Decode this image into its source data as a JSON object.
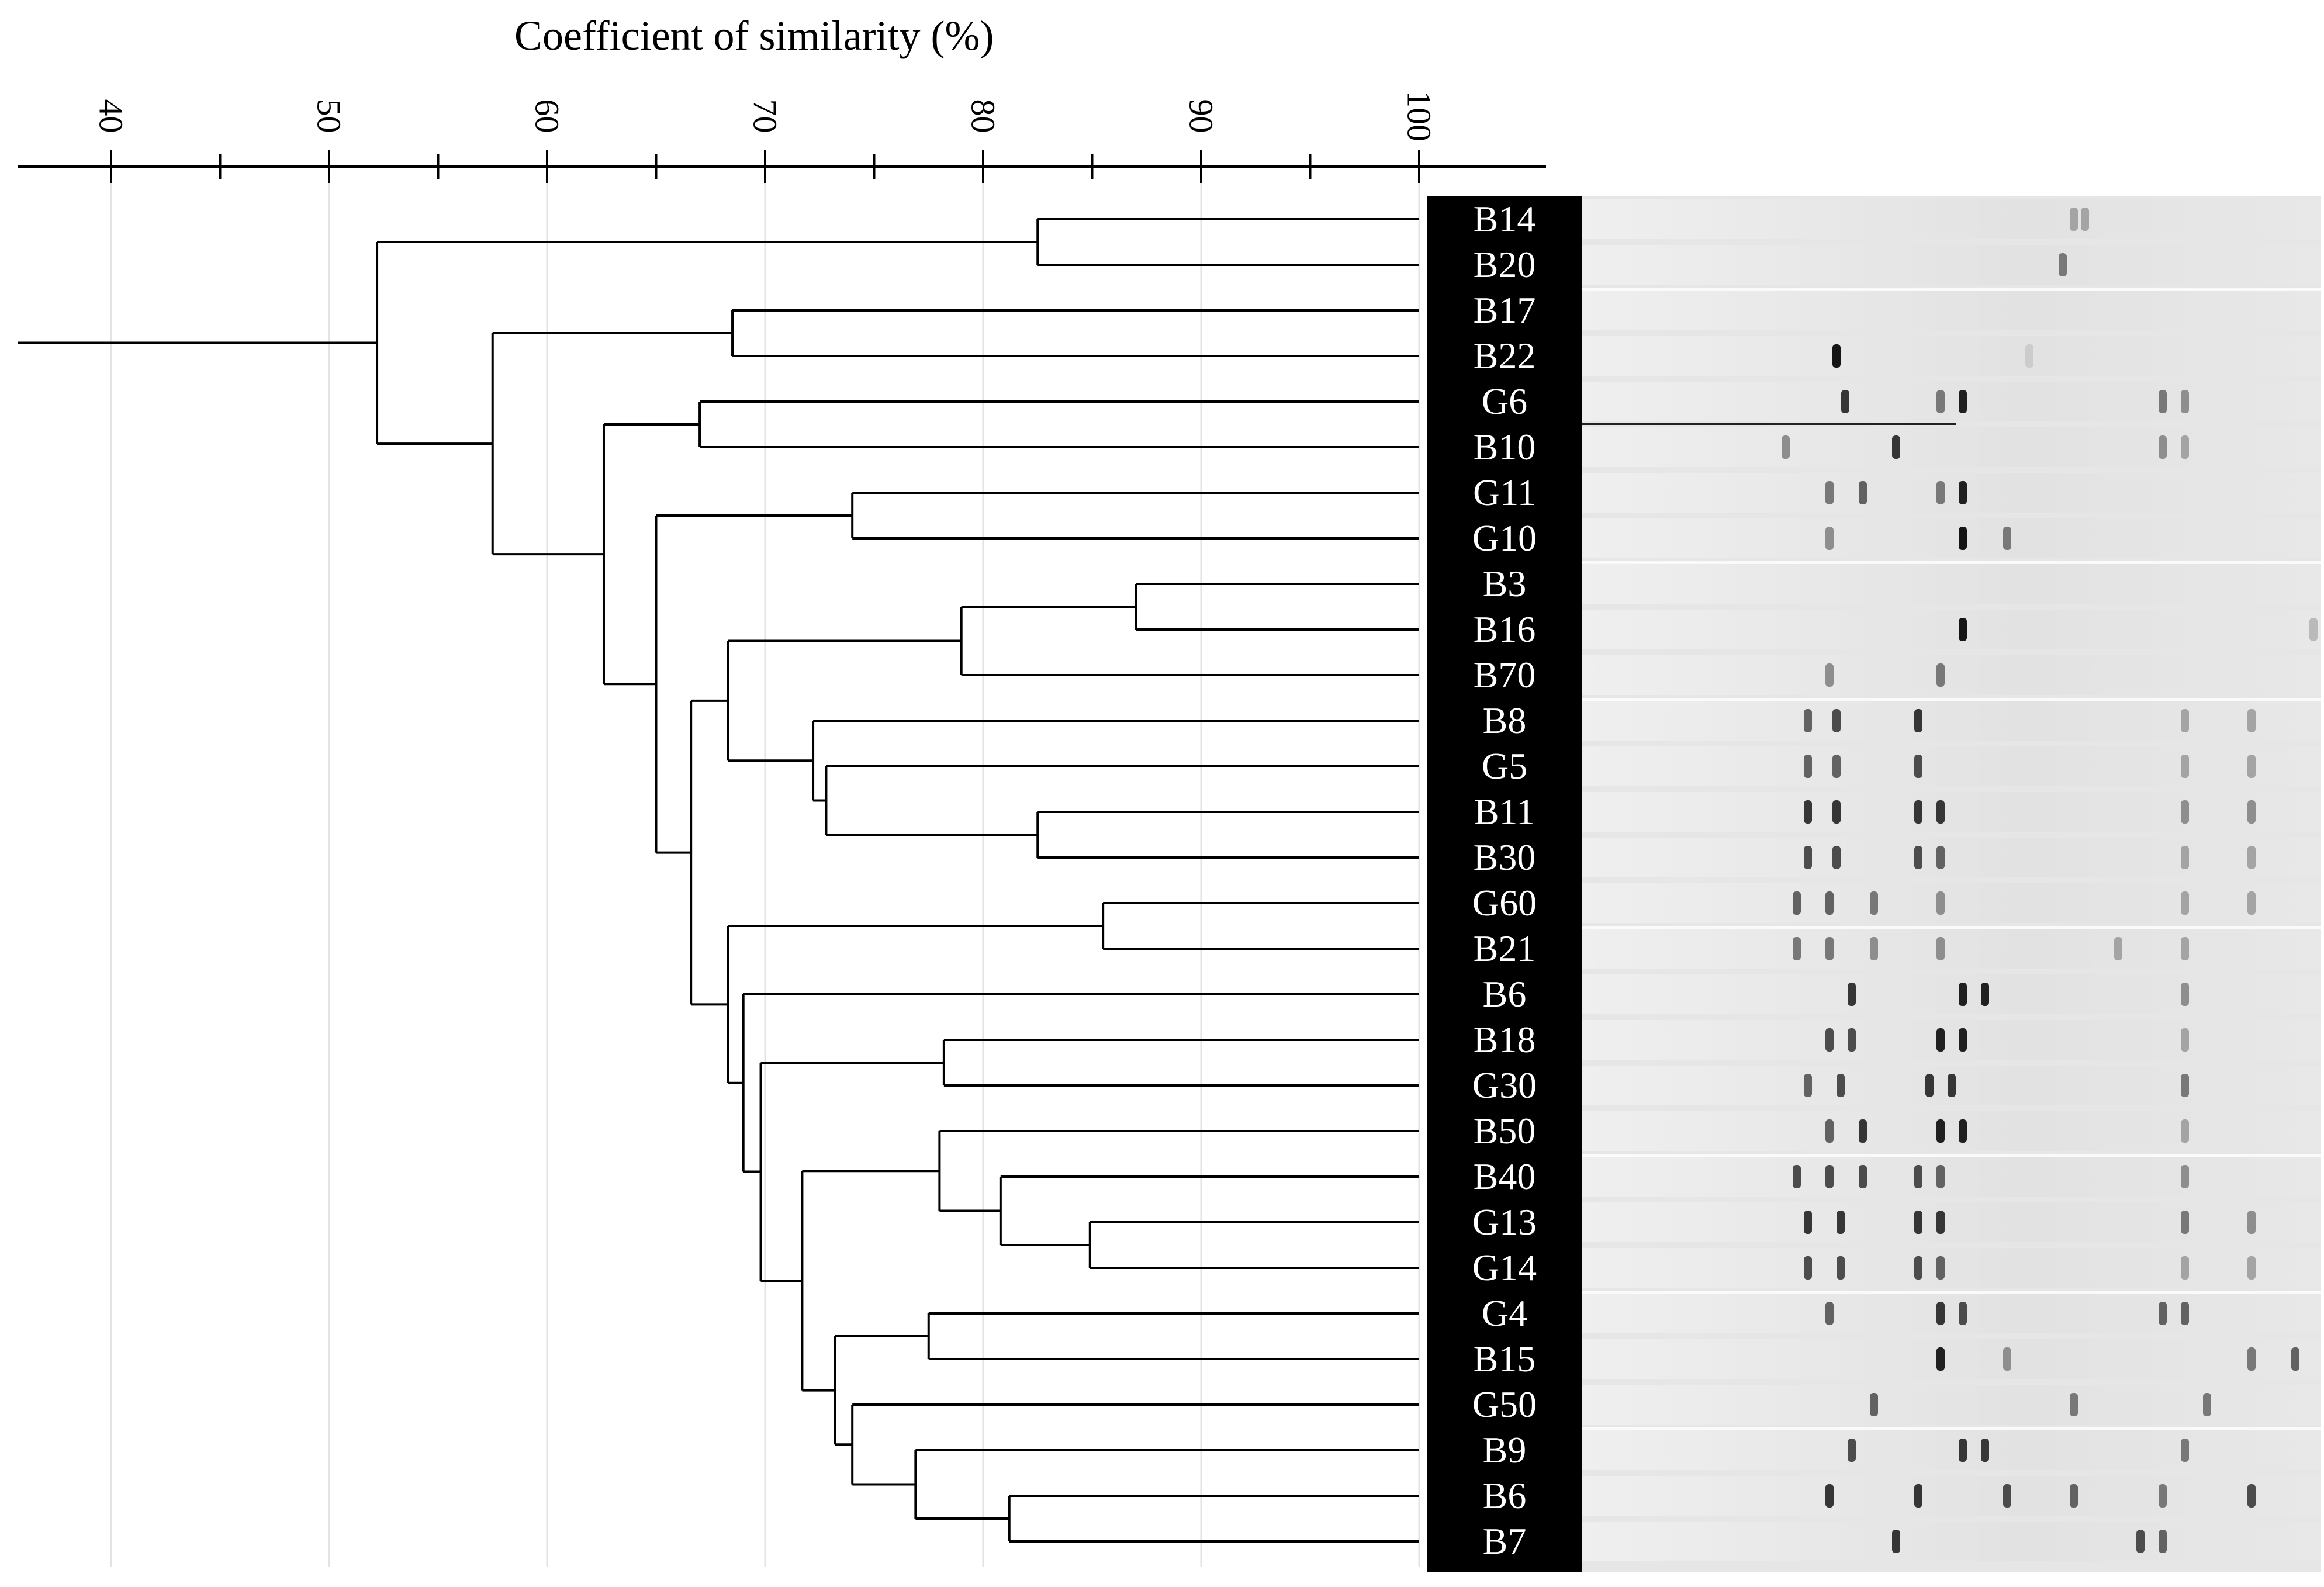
{
  "axis": {
    "title": "Coefficient  of similarity  (%)",
    "ticks": [
      "40",
      "50",
      "60",
      "70",
      "80",
      "90",
      "100"
    ],
    "tick_values": [
      40,
      50,
      60,
      70,
      80,
      90,
      100
    ],
    "minor_values": [
      45,
      55,
      65,
      75,
      85,
      95
    ]
  },
  "leaves": [
    "B14",
    "B20",
    "B17",
    "B22",
    "G6",
    "B10",
    "G11",
    "G10",
    "B3",
    "B16",
    "B70",
    "B8",
    "G5",
    "B11",
    "B30",
    "G60",
    "B21",
    "B6",
    "B18",
    "G30",
    "B50",
    "B40",
    "G13",
    "G14",
    "G4",
    "B15",
    "G50",
    "B9",
    "B6",
    "B7"
  ],
  "dendrogram": {
    "similarity_unit": "%",
    "merges": [
      {
        "join": [
          "B14",
          "B20"
        ],
        "similarity": 82.5
      },
      {
        "join": [
          "B17",
          "B22"
        ],
        "similarity": 68.5
      },
      {
        "join": [
          "G6",
          "B10"
        ],
        "similarity": 67.0
      },
      {
        "join": [
          "G11",
          "G10"
        ],
        "similarity": 74.0
      },
      {
        "join": [
          "B3",
          "B16"
        ],
        "similarity": 87.0
      },
      {
        "join": [
          "B3-B16",
          "B70"
        ],
        "similarity": 79.0
      },
      {
        "join": [
          "B11",
          "B30"
        ],
        "similarity": 82.5
      },
      {
        "join": [
          "G5",
          "B11-B30"
        ],
        "similarity": 72.8
      },
      {
        "join": [
          "B8",
          "G5-B11-B30"
        ],
        "similarity": 72.2
      },
      {
        "join": [
          "B3-B16-B70",
          "B8-G5-B11-B30"
        ],
        "similarity": 68.3
      },
      {
        "join": [
          "G60",
          "B21"
        ],
        "similarity": 85.5
      },
      {
        "join": [
          "B18",
          "G30"
        ],
        "similarity": 78.2
      },
      {
        "join": [
          "G13",
          "G14"
        ],
        "similarity": 84.9
      },
      {
        "join": [
          "B40",
          "G13-G14"
        ],
        "similarity": 80.8
      },
      {
        "join": [
          "B50",
          "B40-G13-G14"
        ],
        "similarity": 78.0
      },
      {
        "join": [
          "G4",
          "B15"
        ],
        "similarity": 77.5
      },
      {
        "join": [
          "B6",
          "B7"
        ],
        "similarity": 81.2
      },
      {
        "join": [
          "B9",
          "B6-B7"
        ],
        "similarity": 76.9
      },
      {
        "join": [
          "G50",
          "B9-B6-B7"
        ],
        "similarity": 74.0
      },
      {
        "join": [
          "G4-B15",
          "G50-B9-B6-B7"
        ],
        "similarity": 73.2
      },
      {
        "join": [
          "B50-B40-G13-G14",
          "G4-B15-G50-B9-B6-B7"
        ],
        "similarity": 71.7
      },
      {
        "join": [
          "B18-G30",
          "B50..B7"
        ],
        "similarity": 69.8
      },
      {
        "join": [
          "B6",
          "B18..B7"
        ],
        "similarity": 69.0
      },
      {
        "join": [
          "G60-B21",
          "B6..B7"
        ],
        "similarity": 68.3
      },
      {
        "join": [
          "B3..B30",
          "G60..B7"
        ],
        "similarity": 66.6
      },
      {
        "join": [
          "G11-G10",
          "B3..B7"
        ],
        "similarity": 65.0
      },
      {
        "join": [
          "G6-B10",
          "G11..B7"
        ],
        "similarity": 62.6
      },
      {
        "join": [
          "B17-B22",
          "G6..B7"
        ],
        "similarity": 57.5
      },
      {
        "join": [
          "B14-B20",
          "B17..B7"
        ],
        "similarity": 52.2
      }
    ]
  },
  "gel": {
    "description_band_positions_normalized": "band x positions are fractions of lane width",
    "lanes": [
      {
        "label": "B14",
        "bands": [
          [
            0.22,
            0.3
          ],
          [
            0.225,
            0.3
          ]
        ]
      },
      {
        "label": "B20",
        "bands": [
          [
            0.215,
            0.5
          ]
        ]
      },
      {
        "label": "B17",
        "bands": []
      },
      {
        "label": "B22",
        "bands": [
          [
            0.113,
            0.95
          ],
          [
            0.2,
            0.12
          ]
        ]
      },
      {
        "label": "G6",
        "bands": [
          [
            0.117,
            0.8
          ],
          [
            0.16,
            0.5
          ],
          [
            0.17,
            0.9
          ],
          [
            0.26,
            0.5
          ],
          [
            0.27,
            0.4
          ]
        ]
      },
      {
        "label": "B10",
        "bands": [
          [
            0.09,
            0.4
          ],
          [
            0.14,
            0.8
          ],
          [
            0.26,
            0.4
          ],
          [
            0.27,
            0.3
          ]
        ]
      },
      {
        "label": "G11",
        "bands": [
          [
            0.11,
            0.5
          ],
          [
            0.125,
            0.6
          ],
          [
            0.16,
            0.5
          ],
          [
            0.17,
            0.9
          ]
        ]
      },
      {
        "label": "G10",
        "bands": [
          [
            0.11,
            0.4
          ],
          [
            0.17,
            0.95
          ],
          [
            0.19,
            0.5
          ]
        ]
      },
      {
        "label": "B3",
        "bands": []
      },
      {
        "label": "B16",
        "bands": [
          [
            0.17,
            0.95
          ],
          [
            0.33,
            0.2
          ]
        ]
      },
      {
        "label": "B70",
        "bands": [
          [
            0.11,
            0.4
          ],
          [
            0.16,
            0.5
          ]
        ]
      },
      {
        "label": "B8",
        "bands": [
          [
            0.1,
            0.6
          ],
          [
            0.113,
            0.7
          ],
          [
            0.15,
            0.8
          ],
          [
            0.27,
            0.3
          ],
          [
            0.3,
            0.3
          ]
        ]
      },
      {
        "label": "G5",
        "bands": [
          [
            0.1,
            0.6
          ],
          [
            0.113,
            0.6
          ],
          [
            0.15,
            0.7
          ],
          [
            0.27,
            0.3
          ],
          [
            0.3,
            0.3
          ]
        ]
      },
      {
        "label": "B11",
        "bands": [
          [
            0.1,
            0.8
          ],
          [
            0.113,
            0.8
          ],
          [
            0.15,
            0.8
          ],
          [
            0.16,
            0.8
          ],
          [
            0.27,
            0.4
          ],
          [
            0.3,
            0.4
          ]
        ]
      },
      {
        "label": "B30",
        "bands": [
          [
            0.1,
            0.7
          ],
          [
            0.113,
            0.7
          ],
          [
            0.15,
            0.7
          ],
          [
            0.16,
            0.6
          ],
          [
            0.27,
            0.3
          ],
          [
            0.3,
            0.3
          ]
        ]
      },
      {
        "label": "G60",
        "bands": [
          [
            0.095,
            0.6
          ],
          [
            0.11,
            0.6
          ],
          [
            0.13,
            0.5
          ],
          [
            0.16,
            0.4
          ],
          [
            0.27,
            0.3
          ],
          [
            0.3,
            0.3
          ]
        ]
      },
      {
        "label": "B21",
        "bands": [
          [
            0.095,
            0.5
          ],
          [
            0.11,
            0.5
          ],
          [
            0.13,
            0.4
          ],
          [
            0.16,
            0.4
          ],
          [
            0.24,
            0.3
          ],
          [
            0.27,
            0.3
          ]
        ]
      },
      {
        "label": "B6",
        "bands": [
          [
            0.12,
            0.8
          ],
          [
            0.17,
            0.9
          ],
          [
            0.18,
            0.9
          ],
          [
            0.27,
            0.4
          ]
        ]
      },
      {
        "label": "B18",
        "bands": [
          [
            0.11,
            0.7
          ],
          [
            0.12,
            0.7
          ],
          [
            0.16,
            0.9
          ],
          [
            0.17,
            0.9
          ],
          [
            0.27,
            0.3
          ]
        ]
      },
      {
        "label": "G30",
        "bands": [
          [
            0.1,
            0.6
          ],
          [
            0.115,
            0.7
          ],
          [
            0.155,
            0.8
          ],
          [
            0.165,
            0.8
          ],
          [
            0.27,
            0.5
          ]
        ]
      },
      {
        "label": "B50",
        "bands": [
          [
            0.11,
            0.6
          ],
          [
            0.125,
            0.8
          ],
          [
            0.16,
            0.9
          ],
          [
            0.17,
            0.9
          ],
          [
            0.27,
            0.3
          ]
        ]
      },
      {
        "label": "B40",
        "bands": [
          [
            0.095,
            0.7
          ],
          [
            0.11,
            0.7
          ],
          [
            0.125,
            0.7
          ],
          [
            0.15,
            0.7
          ],
          [
            0.16,
            0.6
          ],
          [
            0.27,
            0.4
          ]
        ]
      },
      {
        "label": "G13",
        "bands": [
          [
            0.1,
            0.8
          ],
          [
            0.115,
            0.8
          ],
          [
            0.15,
            0.8
          ],
          [
            0.16,
            0.8
          ],
          [
            0.27,
            0.5
          ],
          [
            0.3,
            0.4
          ]
        ]
      },
      {
        "label": "G14",
        "bands": [
          [
            0.1,
            0.7
          ],
          [
            0.115,
            0.7
          ],
          [
            0.15,
            0.7
          ],
          [
            0.16,
            0.6
          ],
          [
            0.27,
            0.3
          ],
          [
            0.3,
            0.3
          ]
        ]
      },
      {
        "label": "G4",
        "bands": [
          [
            0.11,
            0.6
          ],
          [
            0.16,
            0.8
          ],
          [
            0.17,
            0.7
          ],
          [
            0.26,
            0.6
          ],
          [
            0.27,
            0.6
          ]
        ]
      },
      {
        "label": "B15",
        "bands": [
          [
            0.16,
            0.9
          ],
          [
            0.19,
            0.4
          ],
          [
            0.3,
            0.5
          ],
          [
            0.32,
            0.6
          ]
        ]
      },
      {
        "label": "G50",
        "bands": [
          [
            0.13,
            0.6
          ],
          [
            0.22,
            0.5
          ],
          [
            0.28,
            0.5
          ]
        ]
      },
      {
        "label": "B9",
        "bands": [
          [
            0.12,
            0.7
          ],
          [
            0.17,
            0.8
          ],
          [
            0.18,
            0.8
          ],
          [
            0.27,
            0.5
          ]
        ]
      },
      {
        "label": "B6",
        "bands": [
          [
            0.11,
            0.8
          ],
          [
            0.15,
            0.8
          ],
          [
            0.19,
            0.7
          ],
          [
            0.22,
            0.6
          ],
          [
            0.26,
            0.5
          ],
          [
            0.3,
            0.7
          ]
        ]
      },
      {
        "label": "B7",
        "bands": [
          [
            0.14,
            0.8
          ],
          [
            0.25,
            0.7
          ],
          [
            0.26,
            0.6
          ]
        ]
      }
    ]
  }
}
